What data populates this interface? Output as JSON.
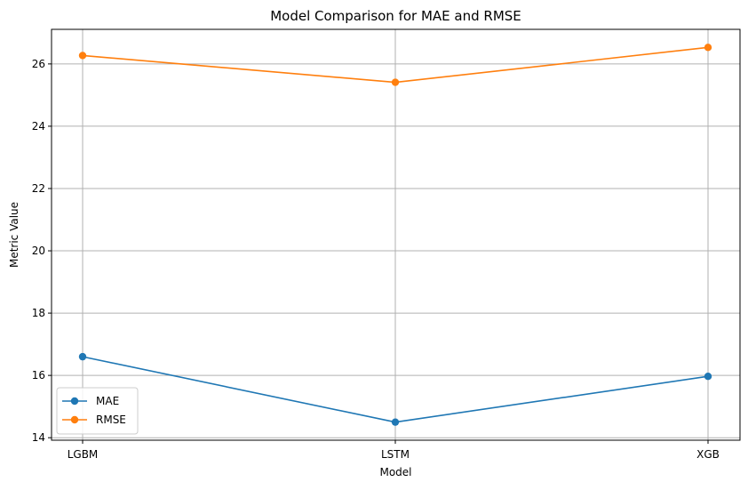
{
  "chart_data": {
    "type": "line",
    "title": "Model Comparison for MAE and RMSE",
    "xlabel": "Model",
    "ylabel": "Metric Value",
    "categories": [
      "LGBM",
      "LSTM",
      "XGB"
    ],
    "series": [
      {
        "name": "MAE",
        "values": [
          16.6,
          14.5,
          15.97
        ],
        "color": "#1f77b4",
        "marker": "circle"
      },
      {
        "name": "RMSE",
        "values": [
          26.27,
          25.41,
          26.53
        ],
        "color": "#ff7f0e",
        "marker": "circle"
      }
    ],
    "ylim": [
      13.92,
      27.11
    ],
    "yticks": [
      14,
      16,
      18,
      20,
      22,
      24,
      26
    ],
    "grid": true,
    "legend_position": "lower-left"
  }
}
